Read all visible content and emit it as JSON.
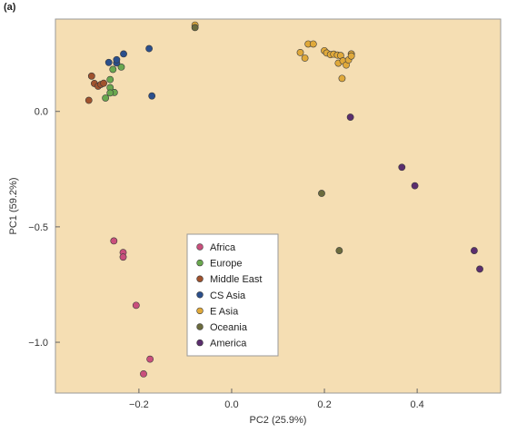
{
  "panel_label": "(a)",
  "colors": {
    "background": "#f5deb3",
    "frame": "#9a9a9a"
  },
  "chart_data": {
    "type": "scatter",
    "xlabel": "PC2 (25.9%)",
    "ylabel": "PC1 (59.2%)",
    "xlim": [
      -0.38,
      0.58
    ],
    "ylim": [
      -1.22,
      0.4
    ],
    "xticks": [
      -0.2,
      0.0,
      0.2,
      0.4
    ],
    "xtick_labels": [
      "−0.2",
      "0.0",
      "0.2",
      "0.4"
    ],
    "yticks": [
      -1.0,
      -0.5,
      0.0
    ],
    "ytick_labels": [
      "−1.0",
      "−0.5",
      "0.0"
    ],
    "grid": false,
    "legend_placement": "bottom-center",
    "series": [
      {
        "name": "Africa",
        "color": "#c94f7c",
        "points": [
          [
            -0.254,
            -0.561
          ],
          [
            -0.234,
            -0.611
          ],
          [
            -0.234,
            -0.631
          ],
          [
            -0.206,
            -0.84
          ],
          [
            -0.176,
            -1.073
          ],
          [
            -0.19,
            -1.137
          ]
        ]
      },
      {
        "name": "Europe",
        "color": "#6aa84f",
        "points": [
          [
            -0.238,
            0.192
          ],
          [
            -0.256,
            0.182
          ],
          [
            -0.262,
            0.138
          ],
          [
            -0.262,
            0.103
          ],
          [
            -0.253,
            0.082
          ],
          [
            -0.272,
            0.058
          ],
          [
            -0.262,
            0.08
          ]
        ]
      },
      {
        "name": "Middle East",
        "color": "#a0522d",
        "points": [
          [
            -0.308,
            0.048
          ],
          [
            -0.302,
            0.153
          ],
          [
            -0.296,
            0.121
          ],
          [
            -0.288,
            0.109
          ],
          [
            -0.282,
            0.117
          ],
          [
            -0.276,
            0.122
          ]
        ]
      },
      {
        "name": "CS Asia",
        "color": "#2b4f8c",
        "points": [
          [
            -0.265,
            0.212
          ],
          [
            -0.248,
            0.21
          ],
          [
            -0.248,
            0.224
          ],
          [
            -0.233,
            0.249
          ],
          [
            -0.178,
            0.272
          ],
          [
            -0.172,
            0.067
          ]
        ]
      },
      {
        "name": "E Asia",
        "color": "#e0a93a",
        "points": [
          [
            -0.079,
            0.374
          ],
          [
            0.148,
            0.255
          ],
          [
            0.158,
            0.231
          ],
          [
            0.165,
            0.292
          ],
          [
            0.176,
            0.292
          ],
          [
            0.2,
            0.263
          ],
          [
            0.205,
            0.253
          ],
          [
            0.213,
            0.246
          ],
          [
            0.22,
            0.248
          ],
          [
            0.228,
            0.244
          ],
          [
            0.235,
            0.242
          ],
          [
            0.23,
            0.209
          ],
          [
            0.24,
            0.219
          ],
          [
            0.247,
            0.201
          ],
          [
            0.252,
            0.223
          ],
          [
            0.258,
            0.249
          ],
          [
            0.258,
            0.24
          ],
          [
            0.238,
            0.143
          ]
        ]
      },
      {
        "name": "Oceania",
        "color": "#6b6b3d",
        "points": [
          [
            -0.079,
            0.363
          ],
          [
            0.194,
            -0.355
          ],
          [
            0.232,
            -0.603
          ]
        ]
      },
      {
        "name": "America",
        "color": "#5b2e6e",
        "points": [
          [
            0.256,
            -0.025
          ],
          [
            0.367,
            -0.242
          ],
          [
            0.395,
            -0.322
          ],
          [
            0.523,
            -0.603
          ],
          [
            0.535,
            -0.683
          ]
        ]
      }
    ]
  }
}
